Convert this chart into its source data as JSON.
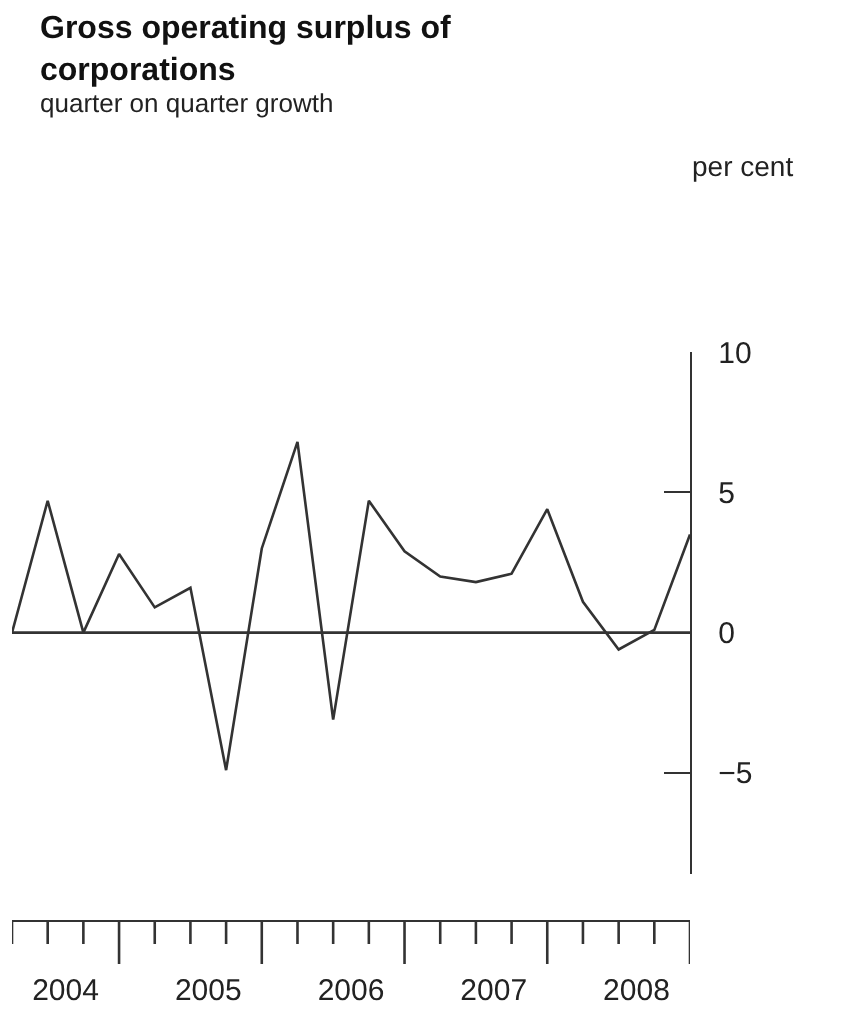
{
  "chart_data": {
    "type": "line",
    "title": "Gross operating surplus of corporations",
    "subtitle": "quarter on quarter growth",
    "annotations": [
      "per cent"
    ],
    "x": [
      2004.0,
      2004.25,
      2004.5,
      2004.75,
      2005.0,
      2005.25,
      2005.5,
      2005.75,
      2006.0,
      2006.25,
      2006.5,
      2006.75,
      2007.0,
      2007.25,
      2007.5,
      2007.75,
      2008.0,
      2008.25,
      2008.5,
      2008.75
    ],
    "series": [
      {
        "color": "#333333",
        "values": [
          0.0,
          4.7,
          0.0,
          2.8,
          0.9,
          1.6,
          -4.9,
          3.0,
          6.8,
          -3.1,
          4.7,
          2.9,
          2.0,
          1.8,
          2.1,
          4.4,
          1.1,
          -0.6,
          0.1,
          3.5
        ]
      }
    ],
    "xlim": [
      2004.0,
      2008.75
    ],
    "xticks": [
      {
        "value": 2004.375,
        "label": "2004"
      },
      {
        "value": 2005.375,
        "label": "2005"
      },
      {
        "value": 2006.375,
        "label": "2006"
      },
      {
        "value": 2007.375,
        "label": "2007"
      },
      {
        "value": 2008.375,
        "label": "2008"
      }
    ],
    "ylim": [
      -8.6,
      10
    ],
    "yticks": [
      -5,
      0,
      5,
      10
    ],
    "ref_lines": [
      {
        "axis": "y",
        "value": 0,
        "color": "#333333"
      }
    ],
    "marker": "none",
    "line_style": "solid"
  }
}
